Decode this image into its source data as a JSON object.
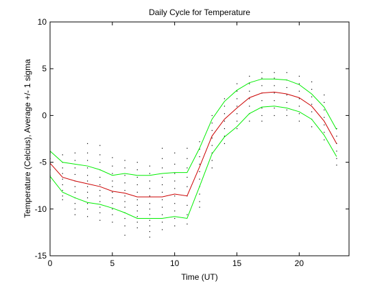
{
  "chart_data": {
    "type": "line",
    "title": "Daily Cycle for Temperature",
    "xlabel": "Time (UT)",
    "ylabel": "Temperature (Celcius), Average +/- 1 sigma",
    "xlim": [
      0,
      24
    ],
    "ylim": [
      -15,
      10
    ],
    "grid": false,
    "xticks": [
      0,
      5,
      10,
      15,
      20
    ],
    "yticks": [
      -15,
      -10,
      -5,
      0,
      5,
      10
    ],
    "x": [
      0,
      1,
      2,
      3,
      4,
      5,
      6,
      7,
      8,
      9,
      10,
      11,
      12,
      13,
      14,
      15,
      16,
      17,
      18,
      19,
      20,
      21,
      22,
      23
    ],
    "series": [
      {
        "role": "average",
        "color": "#cc0000",
        "values": [
          -5.1,
          -6.6,
          -7.0,
          -7.3,
          -7.6,
          -8.1,
          -8.3,
          -8.7,
          -8.7,
          -8.7,
          -8.4,
          -8.6,
          -5.5,
          -2.2,
          -0.4,
          0.8,
          1.9,
          2.4,
          2.5,
          2.3,
          1.9,
          1.0,
          -0.6,
          -3.0
        ]
      },
      {
        "role": "average + 1 sigma",
        "color": "#00ee00",
        "values": [
          -3.8,
          -5.0,
          -5.2,
          -5.4,
          -5.8,
          -6.4,
          -6.2,
          -6.4,
          -6.4,
          -6.2,
          -6.1,
          -6.1,
          -3.5,
          -0.4,
          1.5,
          2.7,
          3.5,
          3.9,
          3.9,
          3.8,
          3.3,
          2.3,
          0.9,
          -1.5
        ]
      },
      {
        "role": "average - 1 sigma",
        "color": "#00ee00",
        "values": [
          -6.5,
          -8.2,
          -8.8,
          -9.3,
          -9.5,
          -9.9,
          -10.4,
          -11.0,
          -11.0,
          -11.0,
          -10.8,
          -11.0,
          -7.6,
          -4.1,
          -2.3,
          -1.2,
          0.2,
          0.9,
          1.0,
          0.8,
          0.4,
          -0.4,
          -2.1,
          -4.4
        ]
      }
    ],
    "scatter": {
      "color": "#000000",
      "points": [
        [
          0,
          -4.0
        ],
        [
          0,
          -4.6
        ],
        [
          0,
          -5.2
        ],
        [
          0,
          -5.8
        ],
        [
          0,
          -6.4
        ],
        [
          0,
          -7.0
        ],
        [
          1,
          -4.2
        ],
        [
          1,
          -5.0
        ],
        [
          1,
          -5.6
        ],
        [
          1,
          -6.2
        ],
        [
          1,
          -6.8
        ],
        [
          1,
          -7.4
        ],
        [
          1,
          -8.0
        ],
        [
          1,
          -8.6
        ],
        [
          1,
          -9.0
        ],
        [
          2,
          -4.0
        ],
        [
          2,
          -4.8
        ],
        [
          2,
          -5.6
        ],
        [
          2,
          -6.3
        ],
        [
          2,
          -7.0
        ],
        [
          2,
          -7.6
        ],
        [
          2,
          -8.2
        ],
        [
          2,
          -8.8
        ],
        [
          2,
          -9.4
        ],
        [
          2,
          -10.0
        ],
        [
          2,
          -10.6
        ],
        [
          3,
          -3.0
        ],
        [
          3,
          -4.0
        ],
        [
          3,
          -4.8
        ],
        [
          3,
          -5.6
        ],
        [
          3,
          -6.4
        ],
        [
          3,
          -7.0
        ],
        [
          3,
          -7.6
        ],
        [
          3,
          -8.2
        ],
        [
          3,
          -8.8
        ],
        [
          3,
          -9.4
        ],
        [
          3,
          -10.0
        ],
        [
          3,
          -10.8
        ],
        [
          4,
          -3.2
        ],
        [
          4,
          -4.2
        ],
        [
          4,
          -5.0
        ],
        [
          4,
          -5.8
        ],
        [
          4,
          -6.6
        ],
        [
          4,
          -7.4
        ],
        [
          4,
          -8.0
        ],
        [
          4,
          -8.6
        ],
        [
          4,
          -9.2
        ],
        [
          4,
          -9.8
        ],
        [
          4,
          -10.4
        ],
        [
          4,
          -11.2
        ],
        [
          5,
          -4.5
        ],
        [
          5,
          -5.4
        ],
        [
          5,
          -6.2
        ],
        [
          5,
          -7.0
        ],
        [
          5,
          -7.6
        ],
        [
          5,
          -8.2
        ],
        [
          5,
          -8.8
        ],
        [
          5,
          -9.4
        ],
        [
          5,
          -10.0
        ],
        [
          5,
          -10.6
        ],
        [
          5,
          -11.4
        ],
        [
          6,
          -4.8
        ],
        [
          6,
          -5.6
        ],
        [
          6,
          -6.4
        ],
        [
          6,
          -7.2
        ],
        [
          6,
          -8.0
        ],
        [
          6,
          -8.6
        ],
        [
          6,
          -9.2
        ],
        [
          6,
          -9.8
        ],
        [
          6,
          -10.4
        ],
        [
          6,
          -11.0
        ],
        [
          6,
          -11.8
        ],
        [
          6,
          -12.8
        ],
        [
          7,
          -5.0
        ],
        [
          7,
          -5.8
        ],
        [
          7,
          -6.6
        ],
        [
          7,
          -7.4
        ],
        [
          7,
          -8.2
        ],
        [
          7,
          -9.0
        ],
        [
          7,
          -9.6
        ],
        [
          7,
          -10.2
        ],
        [
          7,
          -10.8
        ],
        [
          7,
          -11.4
        ],
        [
          7,
          -12.0
        ],
        [
          8,
          -5.4
        ],
        [
          8,
          -6.2
        ],
        [
          8,
          -7.0
        ],
        [
          8,
          -7.8
        ],
        [
          8,
          -8.6
        ],
        [
          8,
          -9.4
        ],
        [
          8,
          -10.0
        ],
        [
          8,
          -10.6
        ],
        [
          8,
          -11.2
        ],
        [
          8,
          -11.8
        ],
        [
          8,
          -12.4
        ],
        [
          8,
          -13.0
        ],
        [
          9,
          -3.5
        ],
        [
          9,
          -4.6
        ],
        [
          9,
          -5.6
        ],
        [
          9,
          -6.6
        ],
        [
          9,
          -7.4
        ],
        [
          9,
          -8.2
        ],
        [
          9,
          -9.0
        ],
        [
          9,
          -9.8
        ],
        [
          9,
          -10.6
        ],
        [
          9,
          -11.4
        ],
        [
          9,
          -12.2
        ],
        [
          10,
          -4.0
        ],
        [
          10,
          -5.2
        ],
        [
          10,
          -6.2
        ],
        [
          10,
          -7.0
        ],
        [
          10,
          -7.8
        ],
        [
          10,
          -8.6
        ],
        [
          10,
          -9.4
        ],
        [
          10,
          -10.2
        ],
        [
          10,
          -11.0
        ],
        [
          10,
          -11.8
        ],
        [
          11,
          -3.5
        ],
        [
          11,
          -4.6
        ],
        [
          11,
          -5.6
        ],
        [
          11,
          -6.6
        ],
        [
          11,
          -7.6
        ],
        [
          11,
          -8.6
        ],
        [
          11,
          -9.6
        ],
        [
          11,
          -10.6
        ],
        [
          11,
          -11.6
        ],
        [
          12,
          -2.8
        ],
        [
          12,
          -3.6
        ],
        [
          12,
          -4.4
        ],
        [
          12,
          -5.2
        ],
        [
          12,
          -6.0
        ],
        [
          12,
          -6.8
        ],
        [
          12,
          -7.6
        ],
        [
          12,
          -8.4
        ],
        [
          12,
          -9.2
        ],
        [
          12,
          -9.8
        ],
        [
          13,
          0.0
        ],
        [
          13,
          -0.8
        ],
        [
          13,
          -1.6
        ],
        [
          13,
          -2.4
        ],
        [
          13,
          -3.2
        ],
        [
          13,
          -4.0
        ],
        [
          13,
          -4.8
        ],
        [
          13,
          -5.6
        ],
        [
          14,
          1.8
        ],
        [
          14,
          1.0
        ],
        [
          14,
          0.2
        ],
        [
          14,
          -0.6
        ],
        [
          14,
          -1.4
        ],
        [
          14,
          -2.2
        ],
        [
          14,
          -3.0
        ],
        [
          15,
          3.4
        ],
        [
          15,
          2.6
        ],
        [
          15,
          1.8
        ],
        [
          15,
          1.0
        ],
        [
          15,
          0.2
        ],
        [
          15,
          -0.6
        ],
        [
          15,
          -1.4
        ],
        [
          16,
          4.2
        ],
        [
          16,
          3.4
        ],
        [
          16,
          2.6
        ],
        [
          16,
          1.8
        ],
        [
          16,
          1.0
        ],
        [
          16,
          0.2
        ],
        [
          16,
          -0.6
        ],
        [
          17,
          4.6
        ],
        [
          17,
          4.0
        ],
        [
          17,
          3.2
        ],
        [
          17,
          2.4
        ],
        [
          17,
          1.6
        ],
        [
          17,
          0.8
        ],
        [
          17,
          0.0
        ],
        [
          17,
          -0.6
        ],
        [
          18,
          4.6
        ],
        [
          18,
          4.0
        ],
        [
          18,
          3.2
        ],
        [
          18,
          2.4
        ],
        [
          18,
          1.6
        ],
        [
          18,
          0.8
        ],
        [
          18,
          0.0
        ],
        [
          19,
          4.6
        ],
        [
          19,
          3.8
        ],
        [
          19,
          3.0
        ],
        [
          19,
          2.2
        ],
        [
          19,
          1.4
        ],
        [
          19,
          0.6
        ],
        [
          19,
          0.0
        ],
        [
          20,
          4.2
        ],
        [
          20,
          3.4
        ],
        [
          20,
          2.6
        ],
        [
          20,
          1.8
        ],
        [
          20,
          1.0
        ],
        [
          20,
          0.2
        ],
        [
          20,
          -0.6
        ],
        [
          21,
          3.6
        ],
        [
          21,
          2.8
        ],
        [
          21,
          2.0
        ],
        [
          21,
          1.2
        ],
        [
          21,
          0.4
        ],
        [
          21,
          -0.4
        ],
        [
          21,
          -1.2
        ],
        [
          22,
          2.2
        ],
        [
          22,
          1.4
        ],
        [
          22,
          0.6
        ],
        [
          22,
          -0.2
        ],
        [
          22,
          -1.0
        ],
        [
          22,
          -1.8
        ],
        [
          22,
          -2.6
        ],
        [
          23,
          -1.4
        ],
        [
          23,
          -2.2
        ],
        [
          23,
          -3.0
        ],
        [
          23,
          -3.8
        ],
        [
          23,
          -4.6
        ],
        [
          23,
          -5.3
        ]
      ]
    }
  }
}
